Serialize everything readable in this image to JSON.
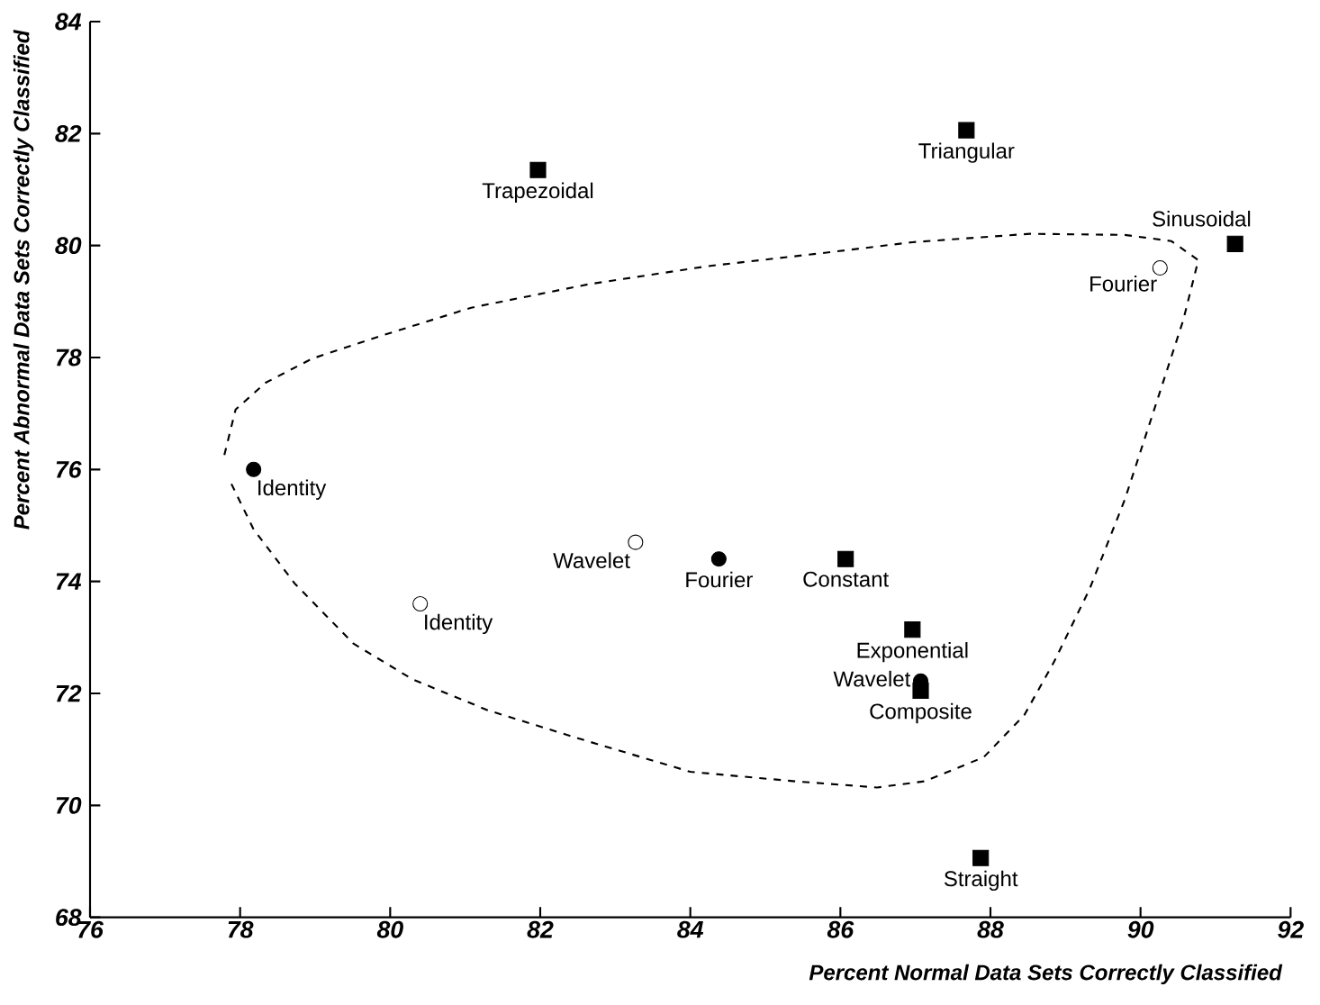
{
  "chart_data": {
    "type": "scatter",
    "xlabel": "Percent Normal Data Sets Correctly Classified",
    "ylabel": "Percent Abnormal Data Sets Correctly Classified",
    "xlim": [
      76,
      92
    ],
    "ylim": [
      68,
      84
    ],
    "xticks": [
      76,
      78,
      80,
      82,
      84,
      86,
      88,
      90,
      92
    ],
    "yticks": [
      68,
      70,
      72,
      74,
      76,
      78,
      80,
      82,
      84
    ],
    "series": [
      {
        "color": "#000000",
        "marker": "circle",
        "x": [
          78.18,
          84.38,
          87.07
        ],
        "values": [
          76.0,
          74.4,
          72.22
        ]
      },
      {
        "color": "#000000",
        "marker": "circle",
        "x": [
          80.4,
          83.27,
          90.26
        ],
        "values": [
          73.6,
          74.7,
          79.6
        ]
      },
      {
        "color": "#000000",
        "marker": "square",
        "x": [
          81.97,
          87.68,
          91.26,
          86.07,
          86.96,
          87.07,
          87.87
        ],
        "values": [
          81.35,
          82.06,
          80.03,
          74.4,
          73.14,
          72.05,
          69.06
        ]
      },
      {
        "type": "line",
        "color": "#000000",
        "marker": "none",
        "line_style": "dashed",
        "x": [
          77.79,
          77.94,
          78.34,
          78.96,
          79.91,
          81.08,
          82.65,
          84.22,
          85.79,
          86.96,
          88.53,
          89.79,
          90.41,
          90.77,
          90.57,
          90.26,
          89.79,
          89.32,
          88.85,
          88.45,
          87.91,
          87.12,
          86.49,
          85.4,
          84.0,
          82.5,
          81.3,
          80.3,
          79.51,
          78.73,
          78.18,
          77.87
        ],
        "values": [
          76.26,
          77.07,
          77.55,
          77.98,
          78.4,
          78.89,
          79.31,
          79.63,
          79.87,
          80.06,
          80.21,
          80.19,
          80.08,
          79.74,
          78.67,
          77.39,
          75.46,
          73.86,
          72.57,
          71.61,
          70.86,
          70.43,
          70.32,
          70.43,
          70.6,
          71.2,
          71.7,
          72.25,
          72.89,
          73.96,
          74.93,
          75.78
        ]
      }
    ],
    "annotations": [
      {
        "text": "Trapezoidal",
        "x": 81.97,
        "y": 81.35
      },
      {
        "text": "Triangular",
        "x": 87.68,
        "y": 82.06
      },
      {
        "text": "Sinusoidal",
        "x": 91.26,
        "y": 80.03
      },
      {
        "text": "Fourier",
        "x": 90.26,
        "y": 79.6
      },
      {
        "text": "Identity",
        "x": 78.18,
        "y": 76.0
      },
      {
        "text": "Identity",
        "x": 80.4,
        "y": 73.6
      },
      {
        "text": "Wavelet",
        "x": 83.27,
        "y": 74.7
      },
      {
        "text": "Fourier",
        "x": 84.38,
        "y": 74.4
      },
      {
        "text": "Constant",
        "x": 86.07,
        "y": 74.4
      },
      {
        "text": "Exponential",
        "x": 86.96,
        "y": 73.14
      },
      {
        "text": "Wavelet",
        "x": 87.07,
        "y": 72.22
      },
      {
        "text": "Composite",
        "x": 87.07,
        "y": 72.05
      },
      {
        "text": "Straight",
        "x": 87.87,
        "y": 69.06
      }
    ]
  }
}
